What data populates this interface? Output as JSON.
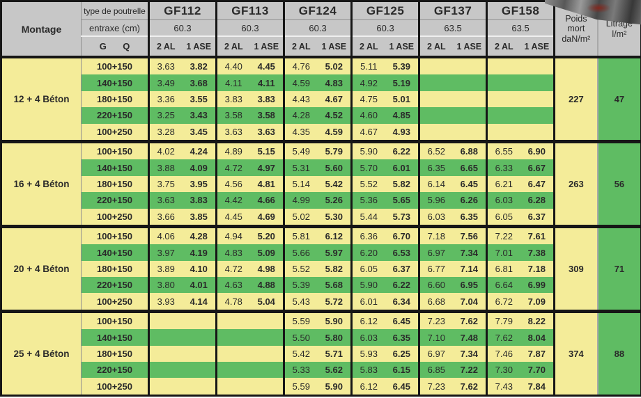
{
  "header": {
    "montage_label": "Montage",
    "type_label": "type de poutrelle",
    "entraxe_label": "entraxe (cm)",
    "g_label": "G",
    "q_label": "Q",
    "col_2al": "2 AL",
    "col_1ase": "1 ASE",
    "poids": [
      "Poids",
      "mort",
      "daN/m²"
    ],
    "litrage": [
      "Litrage",
      "l/m²"
    ],
    "groups": [
      {
        "name": "GF112",
        "entraxe": "60.3"
      },
      {
        "name": "GF113",
        "entraxe": "60.3"
      },
      {
        "name": "GF124",
        "entraxe": "60.3"
      },
      {
        "name": "GF125",
        "entraxe": "60.3"
      },
      {
        "name": "GF137",
        "entraxe": "63.5"
      },
      {
        "name": "GF158",
        "entraxe": "63.5"
      }
    ]
  },
  "body": {
    "groups": [
      {
        "montage": "12 + 4 Béton",
        "poids": "227",
        "litrage": "47",
        "rows": [
          {
            "gq": "100+150",
            "values": [
              [
                "3.63",
                "3.82"
              ],
              [
                "4.40",
                "4.45"
              ],
              [
                "4.76",
                "5.02"
              ],
              [
                "5.11",
                "5.39"
              ],
              [
                "",
                ""
              ],
              [
                "",
                ""
              ]
            ]
          },
          {
            "gq": "140+150",
            "values": [
              [
                "3.49",
                "3.68"
              ],
              [
                "4.11",
                "4.11"
              ],
              [
                "4.59",
                "4.83"
              ],
              [
                "4.92",
                "5.19"
              ],
              [
                "",
                ""
              ],
              [
                "",
                ""
              ]
            ]
          },
          {
            "gq": "180+150",
            "values": [
              [
                "3.36",
                "3.55"
              ],
              [
                "3.83",
                "3.83"
              ],
              [
                "4.43",
                "4.67"
              ],
              [
                "4.75",
                "5.01"
              ],
              [
                "",
                ""
              ],
              [
                "",
                ""
              ]
            ]
          },
          {
            "gq": "220+150",
            "values": [
              [
                "3.25",
                "3.43"
              ],
              [
                "3.58",
                "3.58"
              ],
              [
                "4.28",
                "4.52"
              ],
              [
                "4.60",
                "4.85"
              ],
              [
                "",
                ""
              ],
              [
                "",
                ""
              ]
            ]
          },
          {
            "gq": "100+250",
            "values": [
              [
                "3.28",
                "3.45"
              ],
              [
                "3.63",
                "3.63"
              ],
              [
                "4.35",
                "4.59"
              ],
              [
                "4.67",
                "4.93"
              ],
              [
                "",
                ""
              ],
              [
                "",
                ""
              ]
            ]
          }
        ]
      },
      {
        "montage": "16 + 4 Béton",
        "poids": "263",
        "litrage": "56",
        "rows": [
          {
            "gq": "100+150",
            "values": [
              [
                "4.02",
                "4.24"
              ],
              [
                "4.89",
                "5.15"
              ],
              [
                "5.49",
                "5.79"
              ],
              [
                "5.90",
                "6.22"
              ],
              [
                "6.52",
                "6.88"
              ],
              [
                "6.55",
                "6.90"
              ]
            ]
          },
          {
            "gq": "140+150",
            "values": [
              [
                "3.88",
                "4.09"
              ],
              [
                "4.72",
                "4.97"
              ],
              [
                "5.31",
                "5.60"
              ],
              [
                "5.70",
                "6.01"
              ],
              [
                "6.35",
                "6.65"
              ],
              [
                "6.33",
                "6.67"
              ]
            ]
          },
          {
            "gq": "180+150",
            "values": [
              [
                "3.75",
                "3.95"
              ],
              [
                "4.56",
                "4.81"
              ],
              [
                "5.14",
                "5.42"
              ],
              [
                "5.52",
                "5.82"
              ],
              [
                "6.14",
                "6.45"
              ],
              [
                "6.21",
                "6.47"
              ]
            ]
          },
          {
            "gq": "220+150",
            "values": [
              [
                "3.63",
                "3.83"
              ],
              [
                "4.42",
                "4.66"
              ],
              [
                "4.99",
                "5.26"
              ],
              [
                "5.36",
                "5.65"
              ],
              [
                "5.96",
                "6.26"
              ],
              [
                "6.03",
                "6.28"
              ]
            ]
          },
          {
            "gq": "100+250",
            "values": [
              [
                "3.66",
                "3.85"
              ],
              [
                "4.45",
                "4.69"
              ],
              [
                "5.02",
                "5.30"
              ],
              [
                "5.44",
                "5.73"
              ],
              [
                "6.03",
                "6.35"
              ],
              [
                "6.05",
                "6.37"
              ]
            ]
          }
        ]
      },
      {
        "montage": "20 + 4 Béton",
        "poids": "309",
        "litrage": "71",
        "rows": [
          {
            "gq": "100+150",
            "values": [
              [
                "4.06",
                "4.28"
              ],
              [
                "4.94",
                "5.20"
              ],
              [
                "5.81",
                "6.12"
              ],
              [
                "6.36",
                "6.70"
              ],
              [
                "7.18",
                "7.56"
              ],
              [
                "7.22",
                "7.61"
              ]
            ]
          },
          {
            "gq": "140+150",
            "values": [
              [
                "3.97",
                "4.19"
              ],
              [
                "4.83",
                "5.09"
              ],
              [
                "5.66",
                "5.97"
              ],
              [
                "6.20",
                "6.53"
              ],
              [
                "6.97",
                "7.34"
              ],
              [
                "7.01",
                "7.38"
              ]
            ]
          },
          {
            "gq": "180+150",
            "values": [
              [
                "3.89",
                "4.10"
              ],
              [
                "4.72",
                "4.98"
              ],
              [
                "5.52",
                "5.82"
              ],
              [
                "6.05",
                "6.37"
              ],
              [
                "6.77",
                "7.14"
              ],
              [
                "6.81",
                "7.18"
              ]
            ]
          },
          {
            "gq": "220+150",
            "values": [
              [
                "3.80",
                "4.01"
              ],
              [
                "4.63",
                "4.88"
              ],
              [
                "5.39",
                "5.68"
              ],
              [
                "5.90",
                "6.22"
              ],
              [
                "6.60",
                "6.95"
              ],
              [
                "6.64",
                "6.99"
              ]
            ]
          },
          {
            "gq": "100+250",
            "values": [
              [
                "3.93",
                "4.14"
              ],
              [
                "4.78",
                "5.04"
              ],
              [
                "5.43",
                "5.72"
              ],
              [
                "6.01",
                "6.34"
              ],
              [
                "6.68",
                "7.04"
              ],
              [
                "6.72",
                "7.09"
              ]
            ]
          }
        ]
      },
      {
        "montage": "25 + 4 Béton",
        "poids": "374",
        "litrage": "88",
        "rows": [
          {
            "gq": "100+150",
            "values": [
              [
                "",
                ""
              ],
              [
                "",
                ""
              ],
              [
                "5.59",
                "5.90"
              ],
              [
                "6.12",
                "6.45"
              ],
              [
                "7.23",
                "7.62"
              ],
              [
                "7.79",
                "8.22"
              ]
            ]
          },
          {
            "gq": "140+150",
            "values": [
              [
                "",
                ""
              ],
              [
                "",
                ""
              ],
              [
                "5.50",
                "5.80"
              ],
              [
                "6.03",
                "6.35"
              ],
              [
                "7.10",
                "7.48"
              ],
              [
                "7.62",
                "8.04"
              ]
            ]
          },
          {
            "gq": "180+150",
            "values": [
              [
                "",
                ""
              ],
              [
                "",
                ""
              ],
              [
                "5.42",
                "5.71"
              ],
              [
                "5.93",
                "6.25"
              ],
              [
                "6.97",
                "7.34"
              ],
              [
                "7.46",
                "7.87"
              ]
            ]
          },
          {
            "gq": "220+150",
            "values": [
              [
                "",
                ""
              ],
              [
                "",
                ""
              ],
              [
                "5.33",
                "5.62"
              ],
              [
                "5.83",
                "6.15"
              ],
              [
                "6.85",
                "7.22"
              ],
              [
                "7.30",
                "7.70"
              ]
            ]
          },
          {
            "gq": "100+250",
            "values": [
              [
                "",
                ""
              ],
              [
                "",
                ""
              ],
              [
                "5.59",
                "5.90"
              ],
              [
                "6.12",
                "6.45"
              ],
              [
                "7.23",
                "7.62"
              ],
              [
                "7.43",
                "7.84"
              ]
            ]
          }
        ]
      }
    ]
  },
  "colors": {
    "row_yellow": "#f4ec99",
    "row_green": "#5fbc63",
    "header_gray": "#c7c7c7",
    "border_black": "#161616"
  }
}
